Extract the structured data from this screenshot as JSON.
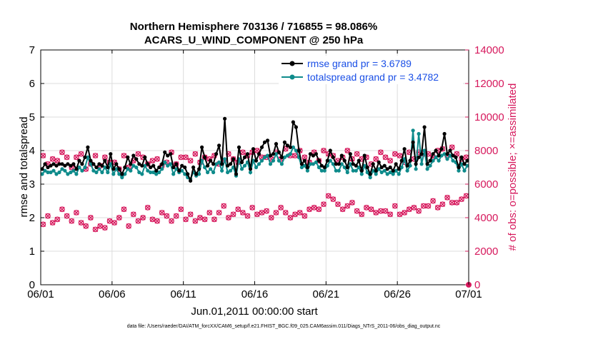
{
  "chart_data": {
    "type": "line",
    "title_line1": "Northern Hemisphere 703136 / 716855 = 98.086%",
    "title_line2": "ACARS_U_WIND_COMPONENT @ 250 hPa",
    "xlabel": "Jun.01,2011 00:00:00 start",
    "ylabel_left": "rmse and totalspread",
    "ylabel_right": "# of obs: o=possible; ×=assimilated",
    "footer": "data file: /Users/raeder/DAI/ATM_forcXX/CAM6_setup/f.e21.FHIST_BGC.f09_025.CAM6assim.011/Diags_NTrS_2011-06/obs_diag_output.nc",
    "x_range_days": [
      0,
      30
    ],
    "x_tick_labels": [
      "06/01",
      "06/06",
      "06/11",
      "06/16",
      "06/21",
      "06/26",
      "07/01"
    ],
    "x_tick_days": [
      0,
      5,
      10,
      15,
      20,
      25,
      30
    ],
    "ylim_left": [
      0,
      7
    ],
    "y_ticks_left": [
      "0",
      "1",
      "2",
      "3",
      "4",
      "5",
      "6",
      "7"
    ],
    "ylim_right": [
      0,
      14000
    ],
    "y_ticks_right": [
      "0",
      "2000",
      "4000",
      "6000",
      "8000",
      "10000",
      "12000",
      "14000"
    ],
    "grid": true,
    "legend_position": "top-right",
    "colors": {
      "rmse": "#000000",
      "spread": "#0e8b8b",
      "obs": "#d6185c",
      "legend_text": "#1a4fe6",
      "right_axis": "#d6185c"
    },
    "series": [
      {
        "name": "rmse grand pr = 3.6789",
        "axis": "left",
        "values": [
          3.45,
          3.6,
          3.5,
          3.55,
          3.6,
          3.55,
          3.6,
          3.6,
          3.55,
          3.6,
          3.55,
          3.6,
          3.45,
          3.7,
          3.6,
          3.8,
          4.1,
          3.7,
          3.6,
          3.5,
          3.6,
          3.55,
          3.7,
          3.5,
          3.9,
          3.45,
          3.6,
          3.45,
          3.3,
          3.5,
          3.8,
          3.6,
          3.85,
          3.75,
          3.6,
          3.55,
          3.8,
          3.6,
          3.5,
          3.55,
          3.4,
          3.5,
          3.6,
          3.95,
          3.85,
          3.9,
          3.5,
          3.6,
          3.4,
          3.55,
          3.5,
          3.3,
          3.1,
          3.5,
          3.3,
          3.45,
          4.1,
          3.8,
          3.55,
          3.7,
          3.6,
          3.9,
          4.15,
          3.6,
          4.95,
          3.55,
          3.6,
          3.75,
          3.3,
          4.1,
          3.65,
          3.8,
          3.9,
          3.45,
          4.05,
          3.7,
          3.9,
          4.1,
          4.25,
          4.3,
          3.85,
          3.9,
          4.2,
          3.95,
          3.8,
          4.25,
          4.15,
          4.1,
          4.85,
          4.7,
          4.0,
          3.6,
          3.7,
          3.5,
          3.9,
          3.85,
          3.9,
          3.7,
          3.55,
          3.5,
          3.7,
          4.0,
          3.8,
          3.6,
          3.6,
          3.85,
          3.7,
          3.5,
          3.9,
          3.6,
          3.55,
          3.7,
          3.4,
          3.85,
          3.5,
          3.3,
          3.6,
          3.4,
          3.65,
          3.5,
          3.55,
          3.45,
          3.5,
          3.4,
          3.6,
          3.45,
          3.7,
          4.05,
          3.55,
          3.7,
          4.25,
          3.6,
          3.8,
          3.9,
          4.7,
          3.6,
          3.7,
          3.9,
          4.0,
          3.85,
          4.05,
          4.5,
          3.9,
          4.0,
          3.85,
          3.8,
          3.5,
          3.8,
          3.6,
          3.7
        ]
      },
      {
        "name": "totalspread grand pr = 3.4782",
        "axis": "left",
        "values": [
          3.3,
          3.4,
          3.35,
          3.35,
          3.4,
          3.3,
          3.35,
          3.45,
          3.4,
          3.3,
          3.35,
          3.4,
          3.3,
          3.5,
          3.4,
          3.5,
          3.8,
          3.6,
          3.4,
          3.35,
          3.45,
          3.35,
          3.5,
          3.35,
          3.6,
          3.3,
          3.45,
          3.3,
          3.2,
          3.3,
          3.45,
          3.4,
          3.55,
          3.5,
          3.35,
          3.3,
          3.55,
          3.4,
          3.35,
          3.35,
          3.3,
          3.35,
          3.45,
          3.65,
          3.55,
          3.6,
          3.3,
          3.45,
          3.35,
          3.4,
          3.3,
          3.2,
          3.15,
          3.35,
          3.25,
          3.3,
          3.7,
          3.5,
          3.35,
          3.45,
          3.35,
          3.6,
          3.65,
          3.4,
          3.75,
          3.35,
          3.4,
          3.5,
          3.25,
          3.75,
          3.45,
          3.55,
          3.65,
          3.35,
          3.7,
          3.5,
          3.6,
          3.7,
          3.8,
          3.85,
          3.6,
          3.7,
          3.9,
          3.7,
          3.6,
          3.8,
          3.85,
          3.9,
          4.1,
          4.0,
          3.8,
          3.5,
          3.55,
          3.4,
          3.6,
          3.6,
          3.65,
          3.5,
          3.4,
          3.4,
          3.55,
          3.7,
          3.6,
          3.4,
          3.4,
          3.6,
          3.5,
          3.35,
          3.6,
          3.4,
          3.4,
          3.5,
          3.3,
          3.55,
          3.35,
          3.2,
          3.4,
          3.3,
          3.45,
          3.35,
          3.4,
          3.3,
          3.35,
          3.3,
          3.4,
          3.3,
          3.5,
          3.75,
          3.4,
          3.55,
          4.6,
          3.45,
          4.5,
          3.6,
          4.0,
          3.45,
          3.55,
          3.7,
          3.8,
          3.7,
          3.85,
          3.9,
          3.75,
          3.85,
          3.7,
          3.65,
          3.4,
          3.6,
          3.4,
          3.55
        ]
      }
    ],
    "obs_possible_by_day": [
      [
        7700,
        7200,
        7500
      ],
      [
        7400,
        7900,
        7600
      ],
      [
        7000,
        7600,
        7800
      ],
      [
        6900,
        7200,
        7700
      ],
      [
        7100,
        7600,
        7300
      ],
      [
        7300,
        6900,
        7700
      ],
      [
        7000,
        7400,
        7800
      ],
      [
        7600,
        7200,
        7400
      ],
      [
        7500,
        7100,
        7300
      ],
      [
        7900,
        7200,
        7600
      ],
      [
        7600,
        7400,
        7800
      ],
      [
        7300,
        7600,
        7500
      ],
      [
        7700,
        7200,
        7400
      ],
      [
        7800,
        7500,
        7300
      ],
      [
        7900,
        7700,
        7900
      ],
      [
        8000,
        7600,
        7600
      ],
      [
        7500,
        7900,
        7500
      ],
      [
        8100,
        7700,
        7700
      ],
      [
        8000,
        7600,
        7300
      ],
      [
        7900,
        7400,
        8000
      ],
      [
        7800,
        7700,
        7400
      ],
      [
        7600,
        8000,
        7500
      ],
      [
        7800,
        7500,
        7600
      ],
      [
        7200,
        7500,
        7900
      ],
      [
        7600,
        7400,
        7800
      ],
      [
        7700,
        7300,
        7900
      ],
      [
        7500,
        7900,
        7800
      ],
      [
        7800,
        7600,
        8000
      ],
      [
        8100,
        7700,
        8200
      ],
      [
        7800,
        7500,
        7600
      ]
    ],
    "obs_low_by_day": [
      [
        3600,
        4100,
        3700
      ],
      [
        3900,
        4500,
        4100
      ],
      [
        3800,
        4300,
        3700
      ],
      [
        3500,
        4000,
        3300
      ],
      [
        3500,
        3400,
        3800
      ],
      [
        3700,
        4000,
        4500
      ],
      [
        3500,
        4200,
        3800
      ],
      [
        4000,
        4600,
        3900
      ],
      [
        3800,
        4300,
        4100
      ],
      [
        3800,
        4100,
        4500
      ],
      [
        3900,
        4200,
        3800
      ],
      [
        4000,
        3900,
        4300
      ],
      [
        3900,
        4300,
        4700
      ],
      [
        4000,
        4200,
        4500
      ],
      [
        4300,
        4100,
        4600
      ],
      [
        4200,
        4300,
        4400
      ],
      [
        4000,
        4300,
        4600
      ],
      [
        4300,
        4000,
        4200
      ],
      [
        4300,
        4100,
        4500
      ],
      [
        4600,
        4500,
        4800
      ],
      [
        5300,
        5100,
        4800
      ],
      [
        4500,
        4700,
        4900
      ],
      [
        4400,
        4200,
        4600
      ],
      [
        4500,
        4300,
        4400
      ],
      [
        4400,
        4200,
        4700
      ],
      [
        4200,
        4300,
        4500
      ],
      [
        4600,
        4400,
        4700
      ],
      [
        4700,
        5000,
        4600
      ],
      [
        4800,
        5200,
        4900
      ],
      [
        4900,
        5100,
        5300
      ]
    ],
    "obs_final_value": 0
  }
}
